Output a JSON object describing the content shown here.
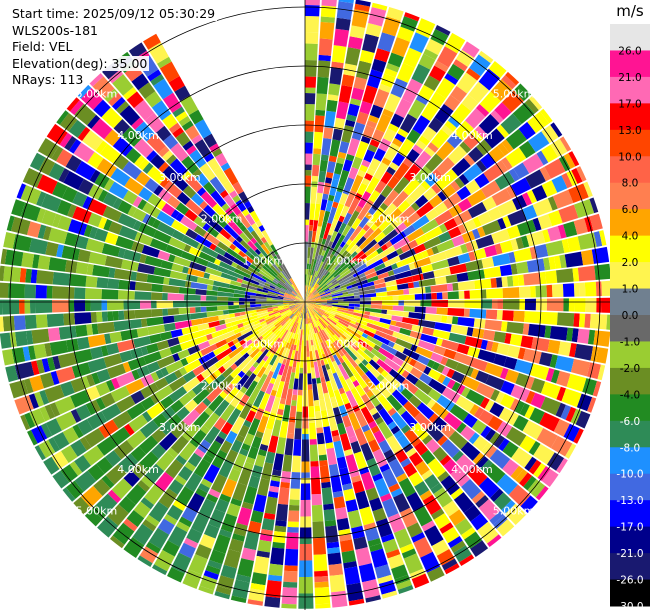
{
  "info": {
    "start_time": "Start time: 2025/09/12 05:30:29",
    "device": "WLS200s-181",
    "field": "Field: VEL",
    "elevation": "Elevation(deg): 35.00",
    "nrays": "NRays: 113"
  },
  "chart_data": {
    "type": "heatmap",
    "projection": "polar-ppi",
    "field": "VEL",
    "units": "m/s",
    "range_rings_km": [
      1,
      2,
      3,
      4,
      5
    ],
    "ring_labels": [
      "1.00km",
      "2.00km",
      "3.00km",
      "4.00km",
      "5.00km"
    ],
    "max_range_km": 5.2,
    "n_rays": 113,
    "colorbar": {
      "title": "m/s",
      "ticks": [
        "26.0",
        "21.0",
        "17.0",
        "13.0",
        "10.0",
        "8.0",
        "6.0",
        "4.0",
        "2.0",
        "1.0",
        "0.0",
        "-1.0",
        "-2.0",
        "-4.0",
        "-6.0",
        "-8.0",
        "-10.0",
        "-13.0",
        "-17.0",
        "-21.0",
        "-26.0",
        "-30.0"
      ],
      "colors": [
        "#e6e6e6",
        "#ff1493",
        "#ff69b4",
        "#ff0000",
        "#ff4500",
        "#ff6347",
        "#ff7f50",
        "#ffa500",
        "#ffff00",
        "#fff44f",
        "#708090",
        "#696969",
        "#9acd32",
        "#6b8e23",
        "#228b22",
        "#2e8b57",
        "#1e90ff",
        "#4169e1",
        "#0000ff",
        "#00008b",
        "#191970",
        "#000000"
      ],
      "label_colors": [
        "#000000",
        "#000000",
        "#000000",
        "#000000",
        "#000000",
        "#000000",
        "#000000",
        "#000000",
        "#000000",
        "#000000",
        "#000000",
        "#000000",
        "#000000",
        "#000000",
        "#ffffff",
        "#ffffff",
        "#ffffff",
        "#ffffff",
        "#ffffff",
        "#ffffff",
        "#ffffff",
        "#ffffff"
      ]
    },
    "blank_sector_deg": [
      -29,
      0
    ]
  }
}
